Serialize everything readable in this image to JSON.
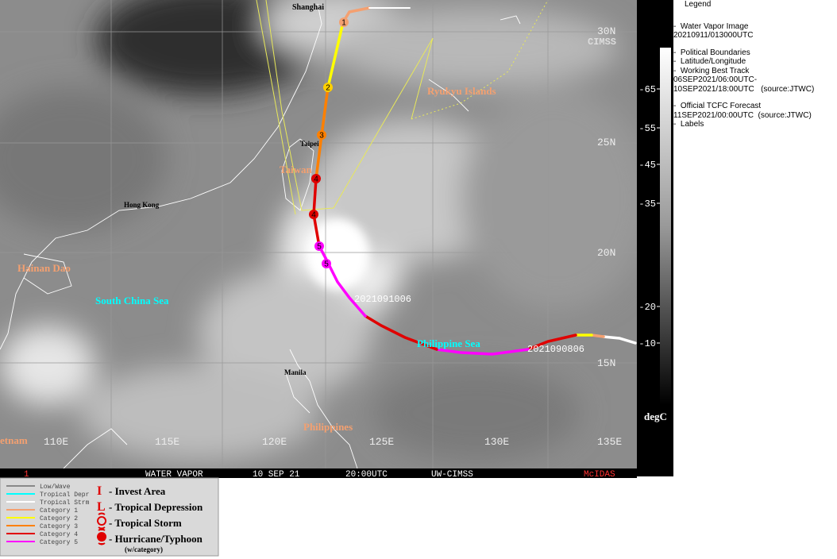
{
  "map": {
    "labels": [
      "Shanghai",
      "Ryukyu Islands",
      "Taipei",
      "Taiwan",
      "Hong Kong",
      "Hainan Dao",
      "South China Sea",
      "Philippine Sea",
      "Manila",
      "Philippines",
      "etnam"
    ],
    "grid_labels": [
      "30N",
      "25N",
      "20N",
      "15N",
      "110E",
      "115E",
      "120E",
      "125E",
      "130E",
      "135E"
    ],
    "track_labels": [
      "2021091006",
      "2021090806"
    ],
    "storm_numbers": [
      "1",
      "2",
      "3",
      "4",
      "4",
      "5",
      "5"
    ],
    "logo": "CIMSS"
  },
  "status_bar": [
    "1",
    "WATER VAPOR",
    "10 SEP 21",
    "20:00UTC",
    "UW-CIMSS",
    "McIDAS"
  ],
  "colorbar": {
    "ticks": [
      -65,
      -55,
      -45,
      -35,
      -20,
      -10
    ],
    "unit": "degC"
  },
  "legend_panel": [
    "Legend",
    "-  Water Vapor Image",
    "20210911/013000UTC",
    "-  Political Boundaries",
    "-  Latitude/Longitude",
    "-  Working Best Track",
    "06SEP2021/06:00UTC-",
    "10SEP2021/18:00UTC   (source:JTWC)",
    "-  Official TCFC Forecast",
    "11SEP2021/00:00UTC  (source:JTWC)",
    "-  Labels"
  ],
  "key": {
    "lines": [
      "Low/Wave",
      "Tropical Depr",
      "Tropical Strm",
      "Category 1",
      "Category 2",
      "Category 3",
      "Category 4",
      "Category 5"
    ],
    "symbols": [
      {
        "glyph": "I",
        "label": "- Invest Area"
      },
      {
        "glyph": "L",
        "label": "- Tropical Depression"
      },
      {
        "glyph": "",
        "label": "- Tropical Storm"
      },
      {
        "glyph": "",
        "label": "- Hurricane/Typhoon"
      }
    ],
    "note": "(w/category)"
  }
}
